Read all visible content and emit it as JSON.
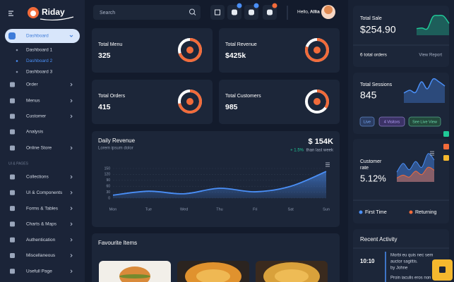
{
  "brand": "Riday",
  "sidebar": {
    "menu": [
      {
        "label": "Dashboard",
        "children": [
          "Dashboard 1",
          "Dashboard 2",
          "Dashboard 3"
        ]
      },
      {
        "label": "Order"
      },
      {
        "label": "Menus"
      },
      {
        "label": "Customer"
      },
      {
        "label": "Analysis"
      },
      {
        "label": "Online Store"
      }
    ],
    "section": "UI & PAGES",
    "pages": [
      "Collections",
      "UI & Components",
      "Forms & Tables",
      "Charts & Maps",
      "Authentication",
      "Miscellaneous",
      "Usefull Page"
    ]
  },
  "header": {
    "search": "Search",
    "greeting": "Hello,",
    "user": "Allia"
  },
  "stats": [
    {
      "label": "Total Menu",
      "value": "325",
      "progress": 70
    },
    {
      "label": "Total Revenue",
      "value": "$425k",
      "progress": 80
    },
    {
      "label": "Total Orders",
      "value": "415",
      "progress": 72
    },
    {
      "label": "Total Customers",
      "value": "985",
      "progress": 35
    }
  ],
  "revenue": {
    "title": "Daily Revenue",
    "subtitle": "Lorem ipsum dolor",
    "total": "$ 154K",
    "change": "+ 1.5%",
    "change_note": "than last week",
    "chart_data": {
      "type": "line",
      "categories": [
        "Mon",
        "Tue",
        "Wed",
        "Thu",
        "Fri",
        "Sat",
        "Sun"
      ],
      "values": [
        15,
        35,
        22,
        50,
        32,
        60,
        135
      ],
      "color": "#4a8ff7",
      "ylim": [
        0,
        150
      ],
      "yticks": [
        0,
        30,
        60,
        90,
        120,
        150
      ],
      "grid": true
    }
  },
  "favourites": {
    "title": "Favourite Items"
  },
  "sale": {
    "label": "Total Sale",
    "value": "$254.90",
    "orders": "6 total orders",
    "link": "View Report",
    "chart_data": {
      "type": "area",
      "values": [
        10,
        11,
        10,
        28,
        30,
        29,
        18
      ],
      "color": "#20c997"
    }
  },
  "sessions": {
    "label": "Total Sessions",
    "value": "845",
    "chart_data": {
      "type": "area",
      "values": [
        14,
        18,
        15,
        30,
        20,
        34,
        30,
        24
      ],
      "color": "#4a8ff7"
    },
    "buttons": [
      "Live",
      "4 Visitors",
      "See Live View"
    ]
  },
  "customer_rate": {
    "label": [
      "Customer",
      "rate"
    ],
    "value": "5.12%",
    "chart_data": {
      "type": "area",
      "series": [
        {
          "name": "First Time",
          "color": "#4a8ff7",
          "values": [
            20,
            38,
            25,
            42,
            30,
            58,
            45
          ]
        },
        {
          "name": "Returning",
          "color": "#f26b3a",
          "values": [
            8,
            14,
            10,
            22,
            15,
            30,
            24
          ]
        }
      ]
    }
  },
  "activity": {
    "title": "Recent Activity",
    "items": [
      {
        "time": "10:10",
        "text": [
          "Morbi eu quis nec sem",
          "auctor sagittis."
        ],
        "by": "by Johne"
      },
      {
        "text": [
          "Proin iaculis eros non"
        ]
      }
    ]
  }
}
